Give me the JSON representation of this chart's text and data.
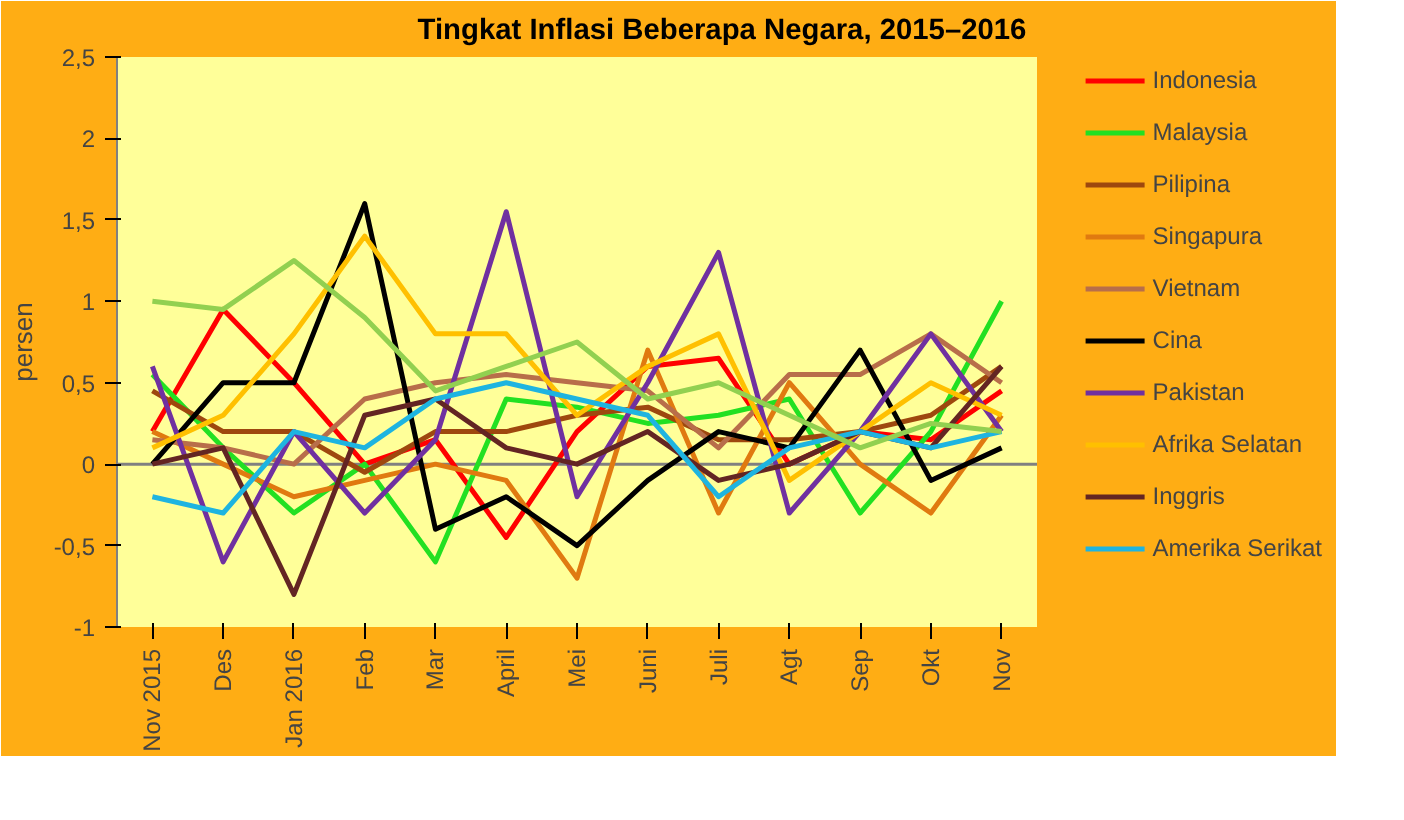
{
  "chart_data": {
    "type": "line",
    "title": "Tingkat Inflasi Beberapa Negara, 2015–2016",
    "ylabel": "persen",
    "categories": [
      "Nov 2015",
      "Des",
      "Jan 2016",
      "Feb",
      "Mar",
      "April",
      "Mei",
      "Juni",
      "Juli",
      "Agt",
      "Sep",
      "Okt",
      "Nov"
    ],
    "ylim": [
      -1,
      2.5
    ],
    "yticks": [
      -1,
      {
        "value": -0.5,
        "label": "-0,5"
      },
      0,
      {
        "value": 0.5,
        "label": "0,5"
      },
      1,
      {
        "value": 1.5,
        "label": "1,5"
      },
      2,
      {
        "value": 2.5,
        "label": "2,5"
      }
    ],
    "grid": false,
    "legend": "right",
    "marker": "none",
    "line_style": "solid",
    "ref_lines": [
      {
        "axis": "y",
        "value": 0,
        "label": null,
        "color": "#808080"
      }
    ],
    "series": [
      {
        "name": "Indonesia",
        "color": "#ff0000",
        "values": [
          0.2,
          0.95,
          0.5,
          0,
          0.15,
          -0.45,
          0.2,
          0.6,
          0.65,
          0,
          0.2,
          0.15,
          0.45
        ]
      },
      {
        "name": "Malaysia",
        "color": "#22e022",
        "values": [
          0.55,
          0.1,
          -0.3,
          0,
          -0.6,
          0.4,
          0.35,
          0.25,
          0.3,
          0.4,
          -0.3,
          0.2,
          1.0
        ]
      },
      {
        "name": "Pilipina",
        "color": "#9e480e",
        "values": [
          0.45,
          0.2,
          0.2,
          -0.05,
          0.2,
          0.2,
          0.3,
          0.35,
          0.15,
          0.15,
          0.2,
          0.3,
          0.6
        ]
      },
      {
        "name": "Singapura",
        "color": "#e07a10",
        "values": [
          0.2,
          0,
          -0.2,
          -0.1,
          0,
          -0.1,
          -0.7,
          0.7,
          -0.3,
          0.5,
          0,
          -0.3,
          0.3
        ]
      },
      {
        "name": "Vietnam",
        "color": "#b86e4a",
        "values": [
          0.15,
          0.1,
          0,
          0.4,
          0.5,
          0.55,
          0.5,
          0.45,
          0.1,
          0.55,
          0.55,
          0.8,
          0.5
        ]
      },
      {
        "name": "Cina",
        "color": "#000000",
        "values": [
          0,
          0.5,
          0.5,
          1.6,
          -0.4,
          -0.2,
          -0.5,
          -0.1,
          0.2,
          0.1,
          0.7,
          -0.1,
          0.1
        ]
      },
      {
        "name": "Pakistan",
        "color": "#7030a0",
        "values": [
          0.6,
          -0.6,
          0.2,
          -0.3,
          0.15,
          1.55,
          -0.2,
          0.5,
          1.3,
          -0.3,
          0.2,
          0.8,
          0.2
        ]
      },
      {
        "name": "Afrika Selatan",
        "color": "#ffc000",
        "values": [
          0.1,
          0.3,
          0.8,
          1.4,
          0.8,
          0.8,
          0.3,
          0.6,
          0.8,
          -0.1,
          0.2,
          0.5,
          0.3
        ]
      },
      {
        "name": "Inggris",
        "color": "#632523",
        "values": [
          0,
          0.1,
          -0.8,
          0.3,
          0.4,
          0.1,
          0,
          0.2,
          -0.1,
          0,
          0.2,
          0.1,
          0.6
        ]
      },
      {
        "name": "Amerika Serikat",
        "color": "#1eb4e0",
        "values": [
          -0.2,
          -0.3,
          0.2,
          0.1,
          0.4,
          0.5,
          0.4,
          0.3,
          -0.2,
          0.1,
          0.2,
          0.1,
          0.2
        ]
      },
      {
        "color": "#92d050",
        "values": [
          1.0,
          0.95,
          1.25,
          0.9,
          0.45,
          0.6,
          0.75,
          0.4,
          0.5,
          0.3,
          0.1,
          0.25,
          0.2
        ]
      }
    ]
  }
}
